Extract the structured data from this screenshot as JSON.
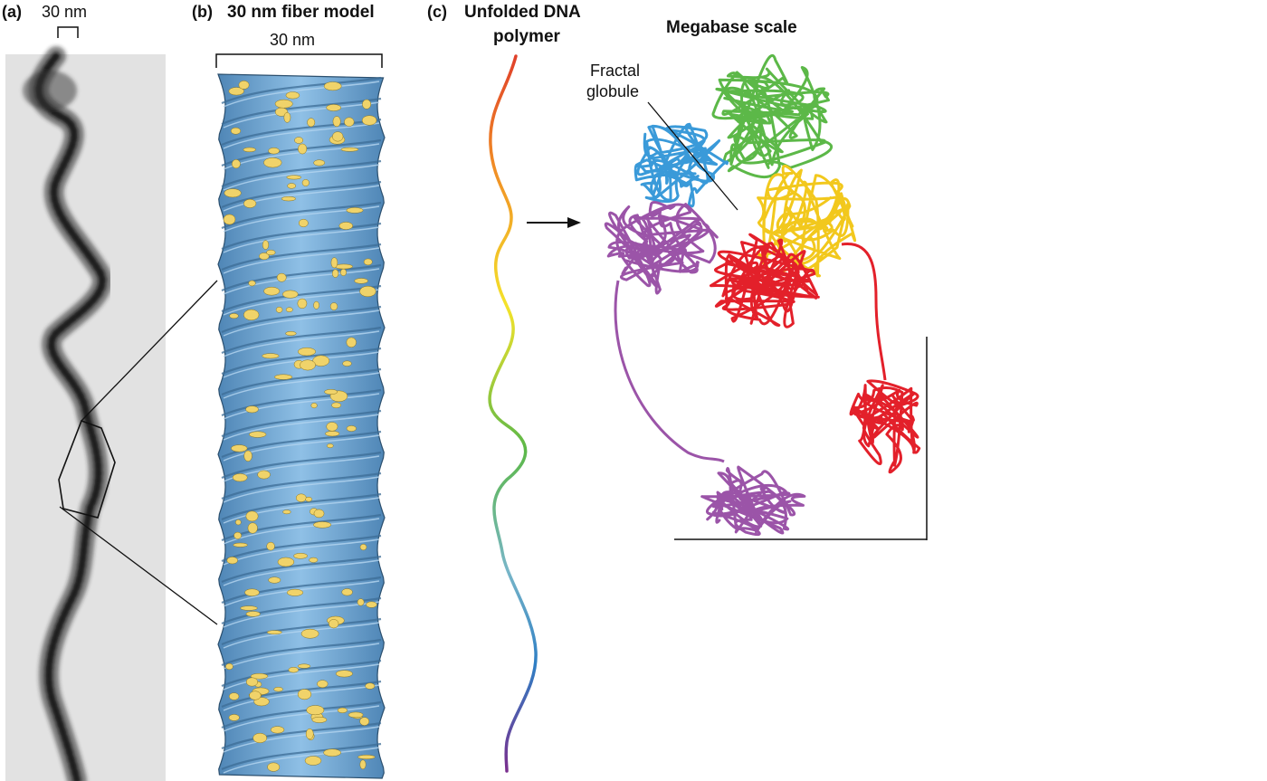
{
  "panel_a": {
    "letter": "(a)",
    "scale_label": "30 nm"
  },
  "panel_b": {
    "letter": "(b)",
    "title": "30 nm fiber model",
    "scale_label": "30 nm"
  },
  "panel_c": {
    "letter": "(c)",
    "title_line1": "Unfolded DNA",
    "title_line2": "polymer",
    "megabase_title": "Megabase scale",
    "callout_line1": "Fractal",
    "callout_line2": "globule"
  },
  "colors": {
    "fiber_blue": "#7fb2dc",
    "fiber_yellow": "#f0d36a",
    "globule_green": "#5cb848",
    "globule_blue": "#3a9ad9",
    "globule_yellow": "#f2c81d",
    "globule_red": "#e3202a",
    "globule_purple": "#9b54a8",
    "micrograph_bg": "#e2e2e2"
  }
}
